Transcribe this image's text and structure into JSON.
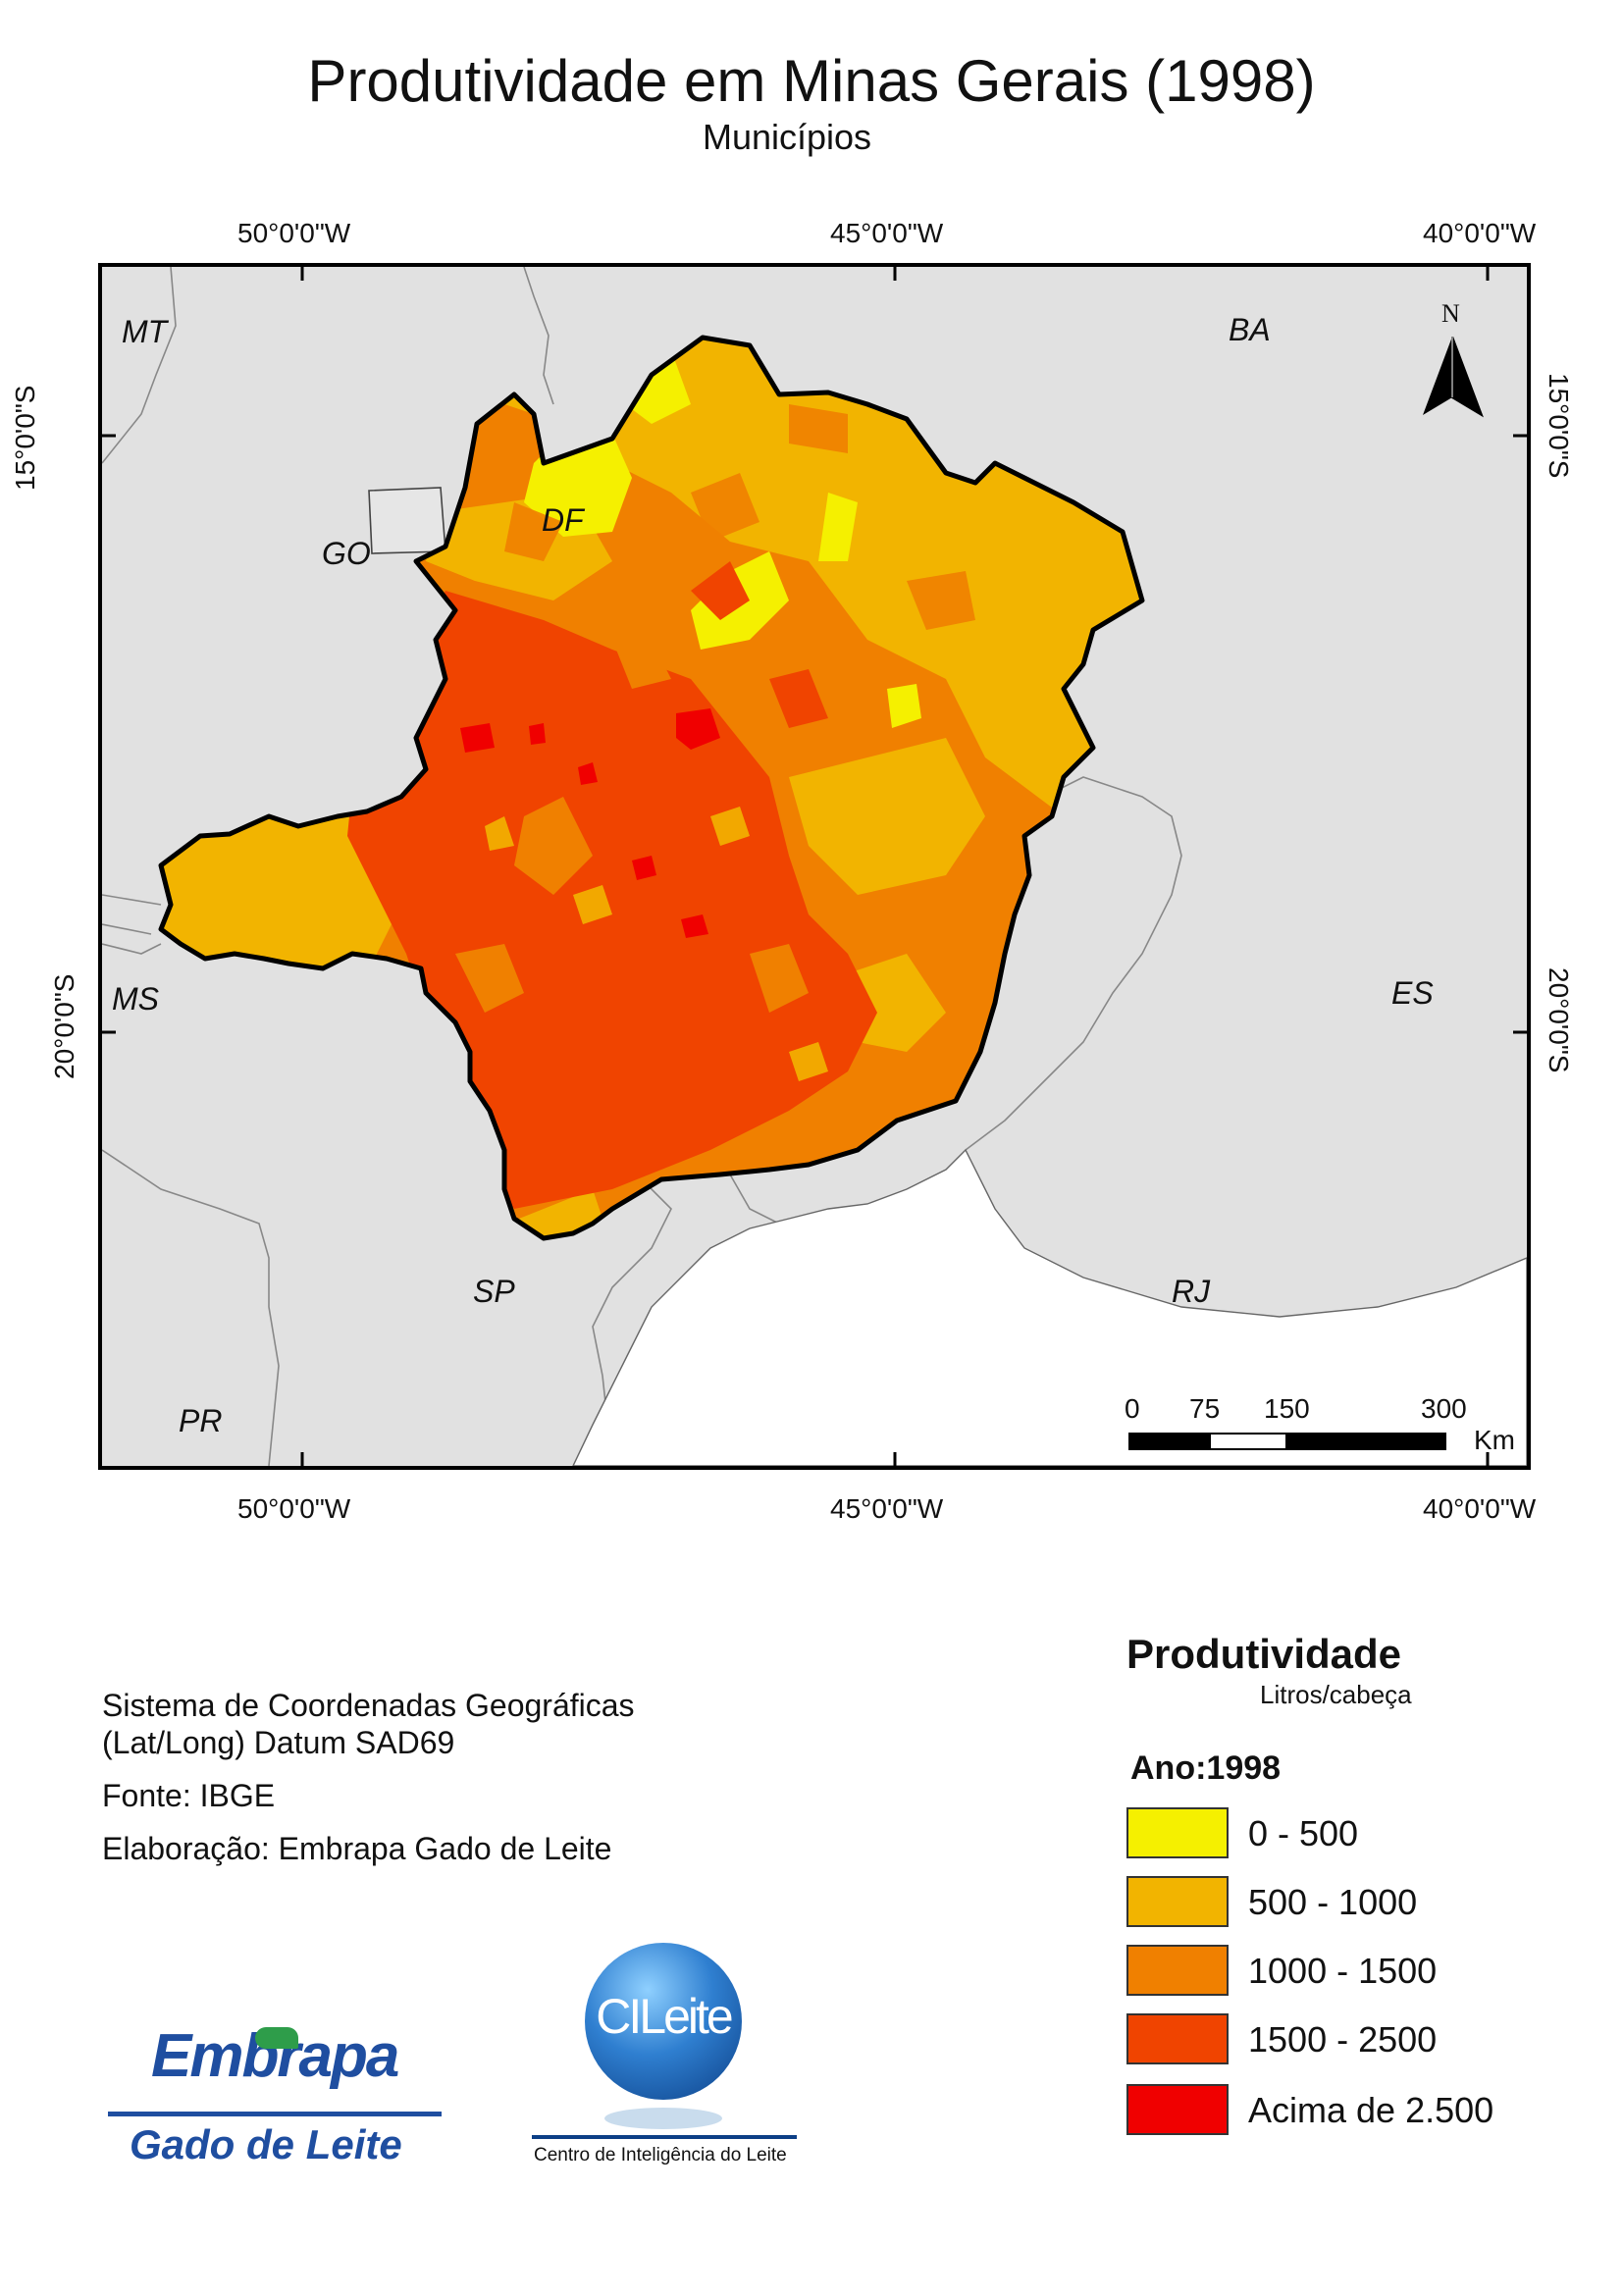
{
  "title": "Produtividade em Minas Gerais (1998)",
  "subtitle": "Municípios",
  "graticule": {
    "top": [
      "50°0'0\"W",
      "45°0'0\"W",
      "40°0'0\"W"
    ],
    "bottom": [
      "50°0'0\"W",
      "45°0'0\"W",
      "40°0'0\"W"
    ],
    "left": [
      "15°0'0\"S",
      "20°0'0\"S"
    ],
    "right": [
      "15°0'0\"S",
      "20°0'0\"S"
    ]
  },
  "states": {
    "mt": "MT",
    "go": "GO",
    "df": "DF",
    "ba": "BA",
    "ms": "MS",
    "es": "ES",
    "sp": "SP",
    "rj": "RJ",
    "pr": "PR"
  },
  "north_arrow": {
    "label": "N",
    "icon": "north-arrow-icon"
  },
  "scale_bar": {
    "ticks": [
      "0",
      "75",
      "150",
      "300"
    ],
    "unit": "Km"
  },
  "metadata": {
    "crs_line1": "Sistema de Coordenadas Geográficas",
    "crs_line2": "(Lat/Long) Datum SAD69",
    "source": "Fonte: IBGE",
    "author": "Elaboração: Embrapa Gado de Leite"
  },
  "legend": {
    "title": "Produtividade",
    "unit": "Litros/cabeça",
    "year": "Ano:1998",
    "classes": [
      {
        "label": "0 - 500",
        "color": "#f5f000"
      },
      {
        "label": "500 - 1000",
        "color": "#f2b400"
      },
      {
        "label": "1000 - 1500",
        "color": "#f08000"
      },
      {
        "label": "1500 - 2500",
        "color": "#f04400"
      },
      {
        "label": "Acima de 2.500",
        "color": "#f00000"
      }
    ]
  },
  "logos": {
    "embrapa_name": "Embrapa",
    "embrapa_unit": "Gado de Leite",
    "cileite_name": "CILeite",
    "cileite_full": "Centro de Inteligência do Leite"
  }
}
